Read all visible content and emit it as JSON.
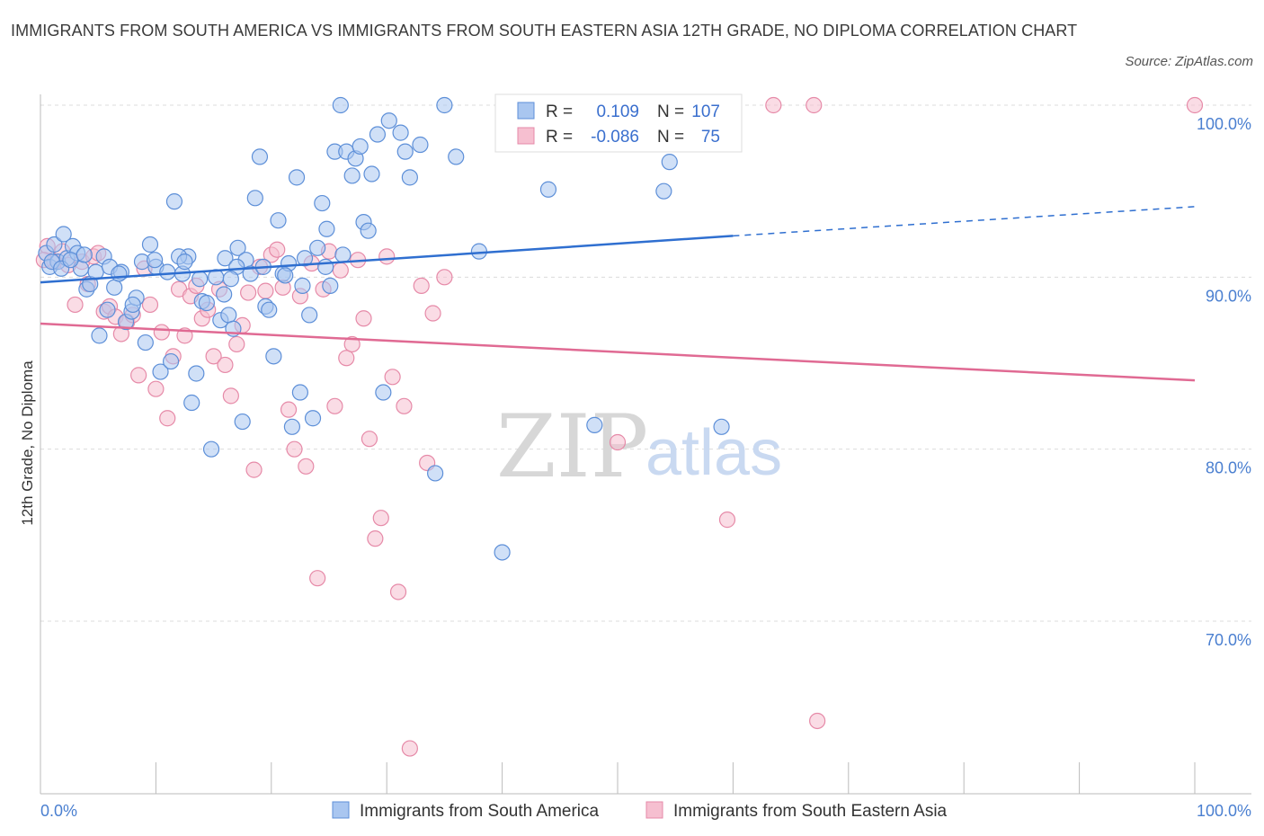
{
  "title": "IMMIGRANTS FROM SOUTH AMERICA VS IMMIGRANTS FROM SOUTH EASTERN ASIA 12TH GRADE, NO DIPLOMA CORRELATION CHART",
  "source": "Source: ZipAtlas.com",
  "watermark": {
    "zip": "ZIP",
    "atlas": "atlas"
  },
  "colors": {
    "blue_fill": "#a9c6f0",
    "blue_stroke": "#5d8fd8",
    "blue_line": "#2f6fd0",
    "pink_fill": "#f6bfd0",
    "pink_stroke": "#e68aa8",
    "pink_line": "#e06a93",
    "tick_text": "#4a7fd0",
    "grid": "#dcdcdc"
  },
  "legend_box": {
    "rows": [
      {
        "r_label": "R =",
        "r_value": "0.109",
        "n_label": "N =",
        "n_value": "107"
      },
      {
        "r_label": "R =",
        "r_value": "-0.086",
        "n_label": "N =",
        "n_value": "75"
      }
    ]
  },
  "chart_data": {
    "type": "scatter",
    "title": "IMMIGRANTS FROM SOUTH AMERICA VS IMMIGRANTS FROM SOUTH EASTERN ASIA 12TH GRADE, NO DIPLOMA CORRELATION CHART",
    "xlabel": "",
    "ylabel": "12th Grade, No Diploma",
    "xlim": [
      0,
      100
    ],
    "ylim": [
      60,
      100
    ],
    "x_tick_labels": [
      "0.0%",
      "100.0%"
    ],
    "y_ticks": [
      70,
      80,
      90,
      100
    ],
    "y_tick_labels": [
      "70.0%",
      "80.0%",
      "90.0%",
      "100.0%"
    ],
    "grid": true,
    "legend_position": "bottom",
    "series": [
      {
        "name": "Immigrants from South America",
        "r": 0.109,
        "n": 107,
        "trend": {
          "x0": 0,
          "y0": 89.7,
          "x1": 60,
          "y1": 92.4,
          "dashed_to_x": 100,
          "dashed_to_y": 94.1
        },
        "points": [
          [
            0.5,
            91.4
          ],
          [
            0.8,
            90.6
          ],
          [
            1.2,
            91.9
          ],
          [
            1.5,
            90.9
          ],
          [
            2.0,
            92.5
          ],
          [
            2.3,
            91.1
          ],
          [
            2.8,
            91.8
          ],
          [
            3.2,
            91.4
          ],
          [
            3.5,
            90.5
          ],
          [
            4.0,
            89.3
          ],
          [
            4.3,
            89.6
          ],
          [
            4.8,
            90.3
          ],
          [
            5.1,
            86.6
          ],
          [
            5.5,
            91.2
          ],
          [
            6.0,
            90.6
          ],
          [
            6.4,
            89.4
          ],
          [
            7.0,
            90.3
          ],
          [
            7.4,
            87.4
          ],
          [
            7.9,
            88.0
          ],
          [
            8.3,
            88.8
          ],
          [
            8.8,
            90.9
          ],
          [
            9.1,
            86.2
          ],
          [
            9.5,
            91.9
          ],
          [
            10.0,
            90.6
          ],
          [
            10.4,
            84.5
          ],
          [
            11.0,
            90.3
          ],
          [
            11.6,
            94.4
          ],
          [
            12.3,
            90.2
          ],
          [
            12.8,
            91.2
          ],
          [
            13.1,
            82.7
          ],
          [
            13.5,
            84.4
          ],
          [
            14.0,
            88.6
          ],
          [
            14.4,
            88.5
          ],
          [
            14.8,
            80.0
          ],
          [
            15.2,
            90.0
          ],
          [
            15.6,
            87.5
          ],
          [
            16.0,
            91.1
          ],
          [
            16.3,
            87.8
          ],
          [
            16.7,
            87.0
          ],
          [
            17.1,
            91.7
          ],
          [
            17.5,
            81.6
          ],
          [
            17.8,
            91.0
          ],
          [
            18.2,
            90.2
          ],
          [
            18.6,
            94.6
          ],
          [
            19.0,
            97.0
          ],
          [
            19.5,
            88.3
          ],
          [
            19.8,
            88.1
          ],
          [
            20.2,
            85.4
          ],
          [
            20.6,
            93.3
          ],
          [
            21.0,
            90.2
          ],
          [
            21.5,
            90.8
          ],
          [
            21.8,
            81.3
          ],
          [
            22.2,
            95.8
          ],
          [
            22.5,
            83.3
          ],
          [
            22.9,
            91.1
          ],
          [
            23.3,
            87.8
          ],
          [
            23.6,
            81.8
          ],
          [
            24.0,
            91.7
          ],
          [
            24.4,
            94.3
          ],
          [
            24.8,
            92.8
          ],
          [
            25.1,
            89.5
          ],
          [
            25.5,
            97.3
          ],
          [
            26.0,
            100.0
          ],
          [
            26.5,
            97.3
          ],
          [
            27.0,
            95.9
          ],
          [
            27.3,
            96.9
          ],
          [
            27.7,
            97.6
          ],
          [
            28.0,
            93.2
          ],
          [
            28.4,
            92.7
          ],
          [
            28.7,
            96.0
          ],
          [
            29.2,
            98.3
          ],
          [
            29.7,
            83.3
          ],
          [
            30.2,
            99.1
          ],
          [
            31.2,
            98.4
          ],
          [
            31.6,
            97.3
          ],
          [
            32.0,
            95.8
          ],
          [
            32.9,
            97.7
          ],
          [
            34.2,
            78.6
          ],
          [
            35.0,
            100.0
          ],
          [
            36.0,
            97.0
          ],
          [
            38.0,
            91.5
          ],
          [
            40.0,
            74.0
          ],
          [
            44.0,
            95.1
          ],
          [
            48.0,
            81.4
          ],
          [
            54.0,
            95.0
          ],
          [
            54.5,
            96.7
          ],
          [
            59.0,
            81.3
          ],
          [
            1.0,
            90.9
          ],
          [
            1.8,
            90.5
          ],
          [
            2.6,
            91.0
          ],
          [
            3.8,
            91.3
          ],
          [
            6.8,
            90.2
          ],
          [
            9.9,
            91.0
          ],
          [
            12.0,
            91.2
          ],
          [
            13.8,
            89.9
          ],
          [
            15.9,
            89.0
          ],
          [
            17.0,
            90.6
          ],
          [
            19.3,
            90.6
          ],
          [
            21.2,
            90.1
          ],
          [
            22.7,
            89.5
          ],
          [
            24.7,
            90.6
          ],
          [
            26.2,
            91.3
          ],
          [
            11.3,
            85.1
          ],
          [
            12.5,
            90.9
          ],
          [
            8.0,
            88.4
          ],
          [
            5.8,
            88.1
          ],
          [
            16.5,
            89.9
          ]
        ]
      },
      {
        "name": "Immigrants from South Eastern Asia",
        "r": -0.086,
        "n": 75,
        "trend": {
          "x0": 0,
          "y0": 87.3,
          "x1": 100,
          "y1": 84.0
        },
        "points": [
          [
            0.6,
            91.8
          ],
          [
            1.2,
            90.9
          ],
          [
            1.9,
            91.5
          ],
          [
            2.4,
            90.7
          ],
          [
            3.0,
            88.4
          ],
          [
            3.6,
            90.9
          ],
          [
            4.1,
            89.6
          ],
          [
            4.6,
            91.2
          ],
          [
            5.0,
            91.4
          ],
          [
            5.5,
            88.0
          ],
          [
            6.0,
            88.3
          ],
          [
            6.5,
            87.7
          ],
          [
            7.0,
            86.7
          ],
          [
            7.5,
            87.4
          ],
          [
            8.0,
            87.8
          ],
          [
            8.5,
            84.3
          ],
          [
            9.0,
            90.5
          ],
          [
            9.5,
            88.4
          ],
          [
            10.0,
            83.5
          ],
          [
            10.5,
            86.8
          ],
          [
            11.0,
            81.8
          ],
          [
            11.5,
            85.4
          ],
          [
            12.0,
            89.3
          ],
          [
            12.5,
            86.6
          ],
          [
            13.0,
            88.9
          ],
          [
            13.5,
            89.5
          ],
          [
            14.0,
            87.6
          ],
          [
            14.5,
            88.1
          ],
          [
            15.0,
            85.4
          ],
          [
            15.5,
            89.3
          ],
          [
            16.0,
            84.9
          ],
          [
            16.5,
            83.1
          ],
          [
            17.0,
            86.1
          ],
          [
            17.5,
            87.2
          ],
          [
            18.0,
            89.1
          ],
          [
            18.5,
            78.8
          ],
          [
            19.0,
            90.6
          ],
          [
            19.5,
            89.2
          ],
          [
            20.0,
            91.3
          ],
          [
            20.5,
            91.6
          ],
          [
            21.0,
            89.4
          ],
          [
            21.5,
            82.3
          ],
          [
            22.0,
            80.0
          ],
          [
            22.5,
            88.9
          ],
          [
            23.0,
            79.0
          ],
          [
            23.5,
            90.8
          ],
          [
            24.0,
            72.5
          ],
          [
            24.5,
            89.3
          ],
          [
            25.0,
            91.5
          ],
          [
            25.5,
            82.5
          ],
          [
            26.0,
            90.4
          ],
          [
            26.5,
            85.3
          ],
          [
            27.0,
            86.1
          ],
          [
            27.5,
            91.0
          ],
          [
            28.0,
            87.6
          ],
          [
            28.5,
            80.6
          ],
          [
            29.0,
            74.8
          ],
          [
            29.5,
            76.0
          ],
          [
            30.0,
            91.2
          ],
          [
            30.5,
            84.2
          ],
          [
            31.0,
            71.7
          ],
          [
            31.5,
            82.5
          ],
          [
            32.0,
            62.6
          ],
          [
            33.0,
            89.5
          ],
          [
            33.5,
            79.2
          ],
          [
            34.0,
            87.9
          ],
          [
            35.0,
            90.0
          ],
          [
            43.5,
            100.0
          ],
          [
            50.0,
            80.4
          ],
          [
            59.5,
            75.9
          ],
          [
            63.5,
            100.0
          ],
          [
            67.0,
            100.0
          ],
          [
            67.3,
            64.2
          ],
          [
            100,
            100.0
          ],
          [
            0.3,
            91.0
          ]
        ]
      }
    ]
  }
}
